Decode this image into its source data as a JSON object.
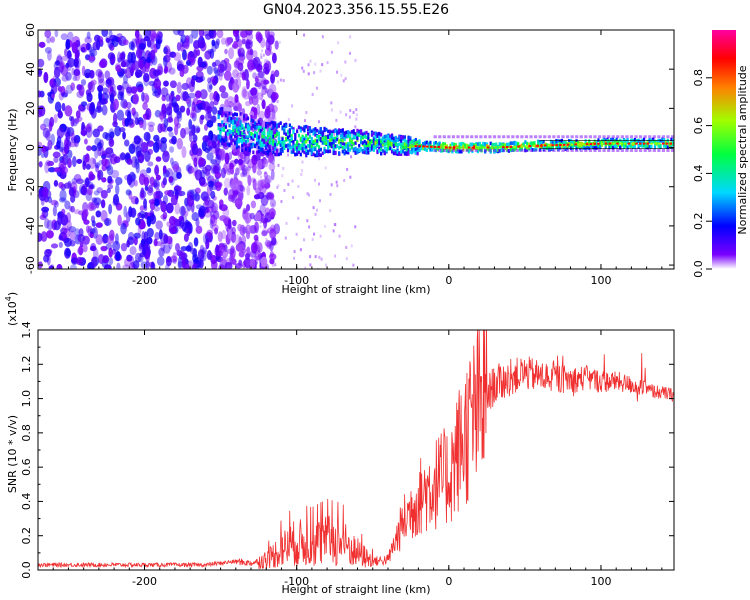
{
  "title": "GN04.2023.356.15.55.E26",
  "chart_data": [
    {
      "type": "heatmap",
      "xlabel": "Height of straight line (km)",
      "ylabel": "Frequency (Hz)",
      "xlim": [
        -270,
        148
      ],
      "ylim": [
        -62,
        60
      ],
      "xticks": [
        -200,
        -100,
        0,
        100
      ],
      "yticks": [
        -60,
        -40,
        -20,
        0,
        20,
        40,
        60
      ],
      "colorbar": {
        "label": "Normalized spectral amplitude",
        "range": [
          0,
          1
        ],
        "ticks": [
          "0.0",
          "0.2",
          "0.4",
          "0.6",
          "0.8"
        ],
        "colors": [
          "#ffffff",
          "#7a00ff",
          "#0000ff",
          "#00d8ff",
          "#00ff40",
          "#a0ff00",
          "#ff8000",
          "#ff0000",
          "#ff00a0"
        ]
      },
      "noise_region_x": [
        -270,
        -125
      ],
      "signal_band": [
        {
          "x": -150,
          "freq": 10,
          "amp": 0.35
        },
        {
          "x": -120,
          "freq": 5,
          "amp": 0.45
        },
        {
          "x": -90,
          "freq": 3,
          "amp": 0.5
        },
        {
          "x": -60,
          "freq": 3,
          "amp": 0.55
        },
        {
          "x": -30,
          "freq": 1,
          "amp": 0.5
        },
        {
          "x": 0,
          "freq": 0,
          "amp": 0.75
        },
        {
          "x": 30,
          "freq": 0,
          "amp": 0.7
        },
        {
          "x": 60,
          "freq": 1,
          "amp": 0.65
        },
        {
          "x": 100,
          "freq": 2,
          "amp": 0.6
        },
        {
          "x": 148,
          "freq": 2,
          "amp": 0.6
        }
      ]
    },
    {
      "type": "line",
      "xlabel": "Height of straight line (km)",
      "ylabel": "SNR (10 * v/v)",
      "y_multiplier": "(x10",
      "y_multiplier_exp": "4",
      "y_multiplier_close": ")",
      "xlim": [
        -270,
        148
      ],
      "ylim": [
        0,
        1.4
      ],
      "xticks": [
        -200,
        -100,
        0,
        100
      ],
      "yticks": [
        "0.0",
        "0.2",
        "0.4",
        "0.6",
        "0.8",
        "1.0",
        "1.2",
        "1.4"
      ],
      "series": [
        {
          "color": "#f03030",
          "x": [
            -270,
            -240,
            -200,
            -160,
            -140,
            -130,
            -120,
            -110,
            -100,
            -90,
            -80,
            -70,
            -60,
            -50,
            -40,
            -30,
            -20,
            -10,
            0,
            10,
            20,
            30,
            40,
            50,
            60,
            70,
            80,
            90,
            100,
            110,
            120,
            130,
            148
          ],
          "values": [
            0.03,
            0.03,
            0.03,
            0.03,
            0.05,
            0.04,
            0.06,
            0.12,
            0.16,
            0.15,
            0.17,
            0.16,
            0.1,
            0.05,
            0.06,
            0.28,
            0.42,
            0.5,
            0.55,
            0.78,
            0.95,
            1.08,
            1.12,
            1.15,
            1.13,
            1.12,
            1.11,
            1.12,
            1.1,
            1.1,
            1.08,
            1.05,
            1.02
          ]
        }
      ]
    }
  ]
}
